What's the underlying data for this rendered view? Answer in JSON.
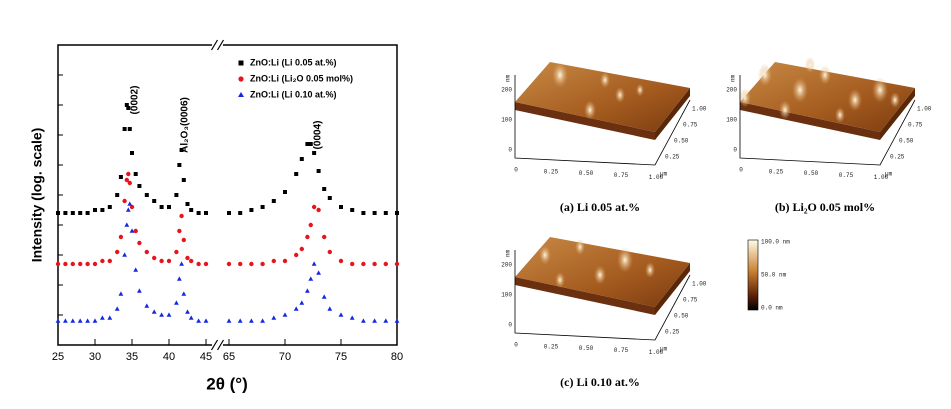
{
  "chart_data": {
    "type": "scatter",
    "x_label": "2θ (°)",
    "y_label": "Intensity (log. scale)",
    "xlim": [
      25,
      80
    ],
    "xbreak": [
      45,
      65
    ],
    "ylim": [
      0,
      100
    ],
    "xticks": [
      25,
      30,
      35,
      40,
      45,
      65,
      70,
      75,
      80
    ],
    "x": [
      25,
      26,
      27,
      28,
      29,
      30,
      31,
      32,
      33,
      33.5,
      34,
      34.3,
      34.5,
      34.7,
      35,
      35.5,
      36,
      37,
      38,
      39,
      40,
      41,
      41.4,
      41.7,
      42,
      42.5,
      43,
      44,
      45,
      65,
      66,
      67,
      68,
      69,
      70,
      71,
      71.5,
      72,
      72.3,
      72.6,
      73,
      73.5,
      74,
      75,
      76,
      77,
      78,
      79,
      80
    ],
    "series": [
      {
        "name": "ZnO:Li (Li 0.05 at.%)",
        "color": "#000000",
        "marker": "square",
        "values": [
          44,
          44,
          44,
          44,
          44,
          45,
          45,
          46,
          50,
          56,
          72,
          80,
          79,
          72,
          64,
          57,
          53,
          50,
          48,
          46,
          46,
          50,
          60,
          65,
          55,
          47,
          45,
          44,
          44,
          44,
          44,
          45,
          46,
          48,
          51,
          57,
          62,
          67,
          67,
          64,
          58,
          52,
          49,
          46,
          45,
          44,
          44,
          44,
          44
        ]
      },
      {
        "name": "ZnO:Li (Li₂O 0.05 mol%)",
        "color": "#e8141c",
        "marker": "circle",
        "values": [
          27,
          27,
          27,
          27,
          27,
          27,
          28,
          28,
          31,
          36,
          48,
          55,
          57,
          54,
          46,
          38,
          34,
          31,
          29,
          28,
          28,
          31,
          38,
          43,
          35,
          29,
          28,
          27,
          27,
          27,
          27,
          27,
          27,
          28,
          28,
          30,
          32,
          36,
          40,
          46,
          45,
          36,
          31,
          28,
          27,
          27,
          27,
          27,
          27
        ]
      },
      {
        "name": "ZnO:Li (Li 0.10 at.%)",
        "color": "#1428e0",
        "marker": "triangle",
        "values": [
          8,
          8,
          8,
          8,
          8,
          8,
          9,
          9,
          12,
          17,
          30,
          40,
          45,
          47,
          38,
          25,
          18,
          13,
          11,
          10,
          10,
          14,
          22,
          27,
          17,
          11,
          9,
          8,
          8,
          8,
          8,
          8,
          8,
          9,
          10,
          12,
          14,
          18,
          22,
          27,
          24,
          16,
          12,
          10,
          9,
          8,
          8,
          8,
          8
        ]
      }
    ],
    "annotations": [
      "(0002)",
      "Al₂O₃(0006)",
      "(0004)"
    ]
  },
  "afm_axes": {
    "z_ticks": [
      "200",
      "100",
      "0"
    ],
    "z_unit": "nm",
    "x_ticks": [
      "0",
      "0.25",
      "0.50",
      "0.75",
      "1.00"
    ],
    "y_ticks": [
      "0.25",
      "0.50",
      "0.75",
      "1.00"
    ],
    "unit": "µm"
  },
  "afm_panels": [
    {
      "caption": "(a) Li 0.05 at.%"
    },
    {
      "caption": "(b) Li₂O 0.05 mol%"
    },
    {
      "caption": "(c) Li 0.10 at.%"
    }
  ],
  "colorbar": {
    "labels": [
      "100.0 nm",
      "50.0 nm",
      "0.0 nm"
    ]
  }
}
